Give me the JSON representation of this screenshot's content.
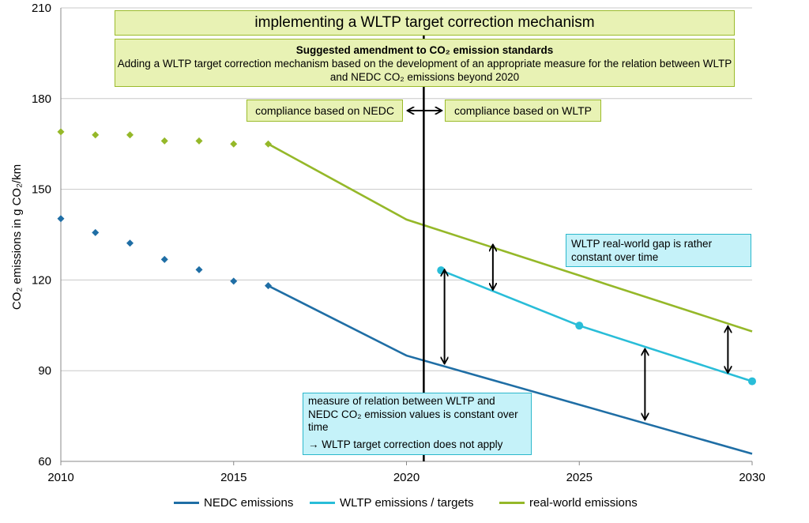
{
  "chart_data": {
    "type": "line",
    "ylabel": "CO₂ emissions in g CO₂/km",
    "ylim": [
      60,
      210
    ],
    "yticks": [
      60,
      90,
      120,
      150,
      180,
      210
    ],
    "xlim": [
      2010,
      2030
    ],
    "xticks": [
      2010,
      2015,
      2020,
      2025,
      2030
    ],
    "grid": "horizontal",
    "legend_position": "bottom",
    "series": [
      {
        "name": "NEDC emissions",
        "color": "#1f6ea5",
        "historical": [
          [
            2010,
            140.3
          ],
          [
            2011,
            135.7
          ],
          [
            2012,
            132.2
          ],
          [
            2013,
            126.8
          ],
          [
            2014,
            123.4
          ],
          [
            2015,
            119.6
          ],
          [
            2016,
            118.1
          ]
        ],
        "line": [
          [
            2016,
            118.1
          ],
          [
            2020,
            95
          ],
          [
            2030,
            62.5
          ]
        ]
      },
      {
        "name": "WLTP emissions / targets",
        "color": "#29bdd8",
        "markers": [
          [
            2021,
            123.2
          ],
          [
            2025,
            104.9
          ],
          [
            2030,
            86.5
          ]
        ],
        "line": [
          [
            2021,
            123.2
          ],
          [
            2025,
            104.9
          ],
          [
            2030,
            86.5
          ]
        ]
      },
      {
        "name": "real-world emissions",
        "color": "#95b829",
        "historical": [
          [
            2010,
            169
          ],
          [
            2011,
            168
          ],
          [
            2012,
            168
          ],
          [
            2013,
            166
          ],
          [
            2014,
            166
          ],
          [
            2015,
            165
          ],
          [
            2016,
            165
          ]
        ],
        "line": [
          [
            2016,
            165
          ],
          [
            2020,
            140
          ],
          [
            2030,
            103
          ]
        ]
      }
    ],
    "vertical_marker": 2020.5,
    "gap_arrows": [
      {
        "x": 2021.1,
        "from": 92.5,
        "to": 123.2
      },
      {
        "x": 2022.5,
        "from": 117,
        "to": 131.5
      },
      {
        "x": 2026.9,
        "from": 74,
        "to": 97
      },
      {
        "x": 2029.3,
        "from": 89.5,
        "to": 104.5
      }
    ],
    "annotations": {
      "title": "implementing a WLTP target correction mechanism",
      "amendment_heading": "Suggested amendment to CO₂ emission standards",
      "amendment_text": "Adding  a WLTP target correction mechanism based on the development of an appropriate measure for the relation between WLTP and NEDC CO₂ emissions beyond 2020",
      "nedc_compliance": "compliance based on NEDC",
      "wltp_compliance": "compliance based on WLTP",
      "gap_note": "WLTP real-world gap is rather constant over time",
      "measure_note": "measure of relation between WLTP and NEDC CO₂ emission values is constant over time",
      "measure_conclusion": "→ WLTP target correction does not apply"
    }
  }
}
